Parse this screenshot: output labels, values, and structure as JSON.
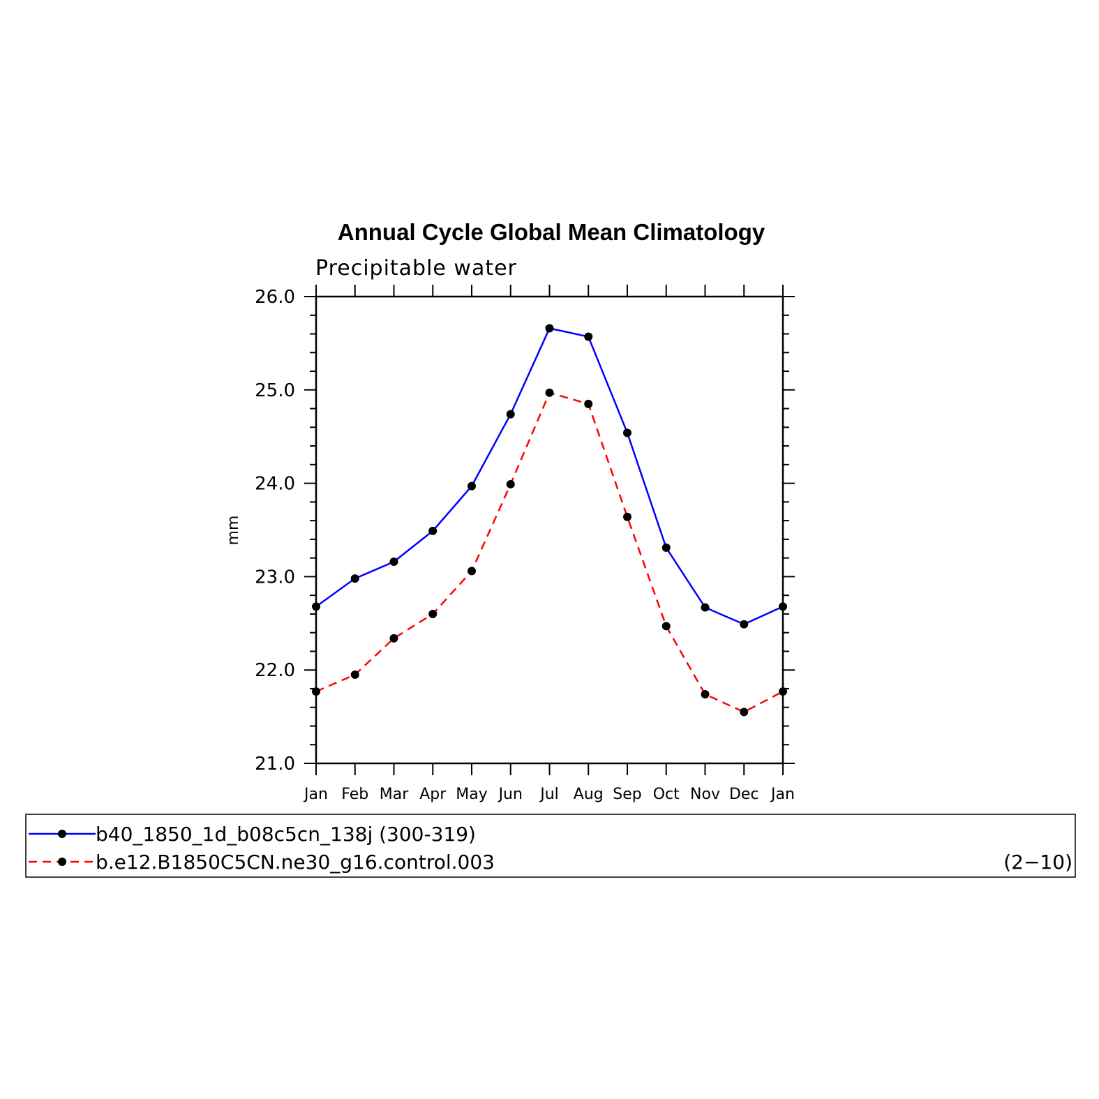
{
  "chart_data": {
    "type": "line",
    "title": "Annual Cycle Global Mean Climatology",
    "subtitle": "Precipitable water",
    "xlabel": "",
    "ylabel": "mm",
    "categories": [
      "Jan",
      "Feb",
      "Mar",
      "Apr",
      "May",
      "Jun",
      "Jul",
      "Aug",
      "Sep",
      "Oct",
      "Nov",
      "Dec",
      "Jan"
    ],
    "ylim": [
      21.0,
      26.0
    ],
    "yticks": [
      "21.0",
      "22.0",
      "23.0",
      "24.0",
      "25.0",
      "26.0"
    ],
    "grid": false,
    "legend_position": "bottom",
    "series": [
      {
        "name": "b40_1850_1d_b08c5cn_138j (300-319)",
        "color": "#0000ff",
        "line_style": "solid",
        "values": [
          22.68,
          22.98,
          23.16,
          23.49,
          23.97,
          24.74,
          25.66,
          25.57,
          24.54,
          23.31,
          22.67,
          22.49,
          22.68
        ]
      },
      {
        "name": "b.e12.B1850C5CN.ne30_g16.control.003",
        "range_label": "(2−10)",
        "color": "#ff0000",
        "line_style": "dashed",
        "values": [
          21.77,
          21.95,
          22.34,
          22.6,
          23.06,
          23.99,
          24.97,
          24.85,
          23.64,
          22.47,
          21.74,
          21.55,
          21.77
        ]
      }
    ],
    "marker_color": "#000000"
  }
}
